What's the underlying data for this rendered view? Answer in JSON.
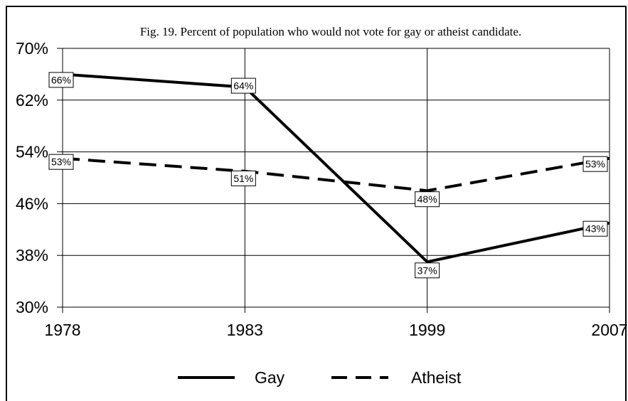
{
  "chart_data": {
    "type": "line",
    "title": "Fig. 19. Percent of population who would not vote for gay or atheist candidate.",
    "x": [
      "1978",
      "1983",
      "1999",
      "2007"
    ],
    "ylim": [
      30,
      70
    ],
    "yticks": [
      30,
      38,
      46,
      54,
      62,
      70
    ],
    "ytick_labels": [
      "30%",
      "38%",
      "46%",
      "54%",
      "62%",
      "70%"
    ],
    "grid": true,
    "legend": "bottom-center",
    "series": [
      {
        "name": "Gay",
        "style": "solid",
        "values": [
          66,
          64,
          37,
          43
        ],
        "labels": [
          "66%",
          "64%",
          "37%",
          "43%"
        ],
        "color": "#000000"
      },
      {
        "name": "Atheist",
        "style": "dashed",
        "values": [
          53,
          51,
          48,
          53
        ],
        "labels": [
          "53%",
          "51%",
          "48%",
          "53%"
        ],
        "color": "#000000"
      }
    ]
  }
}
